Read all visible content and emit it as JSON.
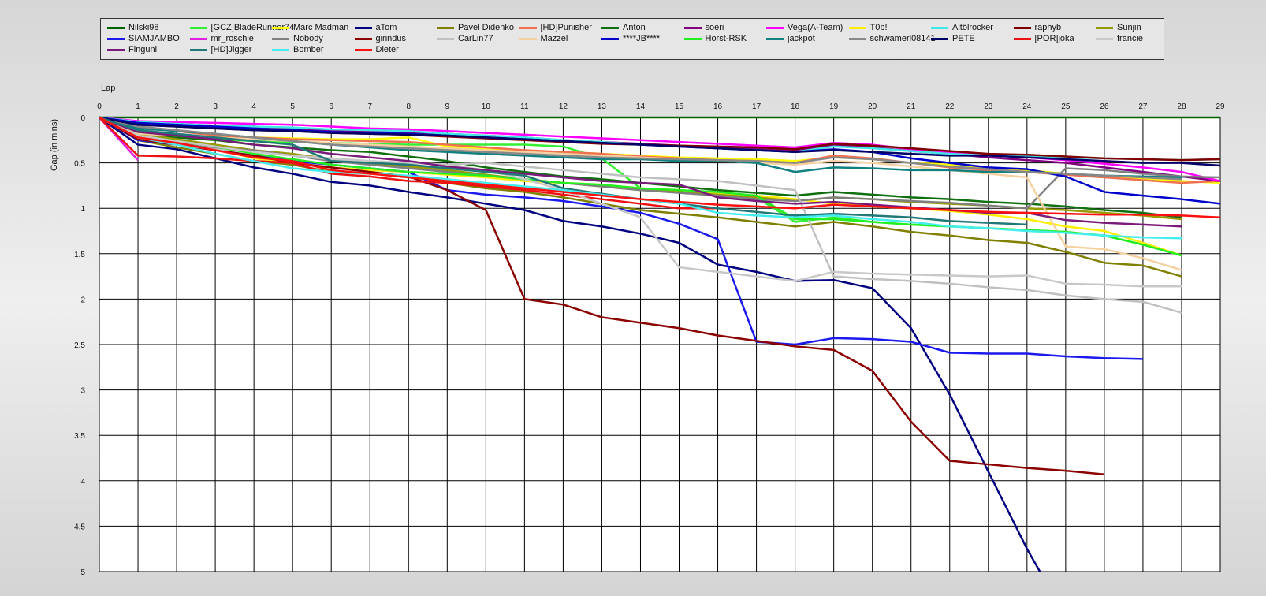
{
  "chart_data": {
    "type": "line",
    "xlabel": "Lap",
    "ylabel": "Gap (in mins)",
    "xlim": [
      0,
      29
    ],
    "ylim": [
      0,
      5
    ],
    "x_ticks": [
      "0",
      "1",
      "2",
      "3",
      "4",
      "5",
      "6",
      "7",
      "8",
      "9",
      "10",
      "11",
      "12",
      "13",
      "14",
      "15",
      "16",
      "17",
      "18",
      "19",
      "20",
      "21",
      "22",
      "23",
      "24",
      "25",
      "26",
      "27",
      "28",
      "29"
    ],
    "y_ticks": [
      "0",
      "0.5",
      "1",
      "1.5",
      "2",
      "2.5",
      "3",
      "3.5",
      "4",
      "4.5",
      "5"
    ],
    "y_tick_values": [
      0,
      0.5,
      1,
      1.5,
      2,
      2.5,
      3,
      3.5,
      4,
      4.5,
      5
    ],
    "grid": true,
    "legend_position": "top",
    "series": [
      {
        "name": "Nilski98",
        "color": "#006400",
        "values": [
          0,
          0,
          0,
          0,
          0,
          0,
          0,
          0,
          0,
          0,
          0,
          0,
          0,
          0,
          0,
          0,
          0,
          0,
          0,
          0,
          0,
          0,
          0,
          0,
          0,
          0,
          0,
          0,
          0,
          0
        ]
      },
      {
        "name": "[GCZ]BladeRunner74",
        "color": "#33ee33",
        "values": [
          0,
          0.2,
          0.22,
          0.24,
          0.26,
          0.27,
          0.28,
          0.29,
          0.3,
          0.3,
          0.3,
          0.3,
          0.32,
          0.45,
          0.78,
          0.82,
          0.84,
          0.88,
          1.15,
          1.1,
          1.15,
          1.18,
          1.2,
          1.22,
          1.24,
          1.26,
          1.3,
          1.4,
          1.52
        ]
      },
      {
        "name": "Marc Madman",
        "color": "#ffff00",
        "values": [
          0,
          0.15,
          0.2,
          0.22,
          0.22,
          0.23,
          0.24,
          0.24,
          0.22,
          0.32,
          0.35,
          0.37,
          0.38,
          0.4,
          0.42,
          0.44,
          0.45,
          0.46,
          0.48,
          0.44,
          0.46,
          0.5,
          0.52,
          0.55,
          0.58,
          0.62,
          0.65,
          0.68,
          0.7,
          0.72
        ]
      },
      {
        "name": "aTom",
        "color": "#000080",
        "values": [
          0,
          0.3,
          0.35,
          0.45,
          0.55,
          0.62,
          0.71,
          0.75,
          0.82,
          0.88,
          0.95,
          1.02,
          1.14,
          1.2,
          1.28,
          1.38,
          1.62,
          1.7,
          1.8,
          1.79,
          1.88,
          2.32,
          3.05,
          3.9,
          4.75,
          5.5
        ]
      },
      {
        "name": "Pavel Didenko",
        "color": "#808000",
        "values": [
          0,
          0.25,
          0.33,
          0.4,
          0.48,
          0.52,
          0.6,
          0.62,
          0.65,
          0.72,
          0.78,
          0.82,
          0.88,
          0.95,
          1.02,
          1.06,
          1.1,
          1.15,
          1.2,
          1.15,
          1.2,
          1.26,
          1.3,
          1.35,
          1.38,
          1.48,
          1.6,
          1.63,
          1.75
        ]
      },
      {
        "name": "[HD]Punisher",
        "color": "#f07050",
        "values": [
          0,
          0.1,
          0.15,
          0.2,
          0.22,
          0.24,
          0.25,
          0.26,
          0.27,
          0.3,
          0.33,
          0.36,
          0.38,
          0.4,
          0.43,
          0.45,
          0.47,
          0.48,
          0.5,
          0.42,
          0.45,
          0.5,
          0.55,
          0.58,
          0.6,
          0.63,
          0.66,
          0.69,
          0.72,
          0.7
        ]
      },
      {
        "name": "Anton",
        "color": "#107010",
        "values": [
          0,
          0.17,
          0.22,
          0.25,
          0.3,
          0.33,
          0.36,
          0.38,
          0.43,
          0.48,
          0.55,
          0.6,
          0.65,
          0.68,
          0.72,
          0.76,
          0.8,
          0.83,
          0.86,
          0.82,
          0.85,
          0.88,
          0.9,
          0.93,
          0.95,
          0.98,
          1.02,
          1.05,
          1.1
        ]
      },
      {
        "name": "soeri",
        "color": "#800080",
        "values": [
          0,
          0.05,
          0.07,
          0.09,
          0.1,
          0.12,
          0.14,
          0.15,
          0.16,
          0.18,
          0.2,
          0.22,
          0.25,
          0.27,
          0.29,
          0.31,
          0.33,
          0.35,
          0.37,
          0.3,
          0.33,
          0.37,
          0.4,
          0.44,
          0.47,
          0.5,
          0.55,
          0.6,
          0.65,
          0.7
        ]
      },
      {
        "name": "Vega(A-Team)",
        "color": "#ff00ff",
        "values": [
          0,
          0.04,
          0.05,
          0.06,
          0.07,
          0.08,
          0.1,
          0.12,
          0.13,
          0.15,
          0.17,
          0.19,
          0.21,
          0.23,
          0.25,
          0.27,
          0.29,
          0.31,
          0.33,
          0.28,
          0.3,
          0.35,
          0.38,
          0.42,
          0.44,
          0.47,
          0.51,
          0.55,
          0.6,
          0.7
        ]
      },
      {
        "name": "T0b!",
        "color": "#ffee00",
        "values": [
          0,
          0.22,
          0.28,
          0.35,
          0.45,
          0.5,
          0.55,
          0.58,
          0.6,
          0.63,
          0.66,
          0.7,
          0.72,
          0.74,
          0.78,
          0.8,
          0.83,
          0.86,
          0.9,
          0.95,
          0.98,
          1.0,
          1.03,
          1.07,
          1.12,
          1.2,
          1.25,
          1.38,
          1.52
        ]
      },
      {
        "name": "Altölrocker",
        "color": "#40e8e8",
        "values": [
          0,
          0.05,
          0.07,
          0.09,
          0.1,
          0.11,
          0.13,
          0.14,
          0.15,
          0.18,
          0.2,
          0.22,
          0.25,
          0.27,
          0.3,
          0.32,
          0.34,
          0.36,
          0.38,
          0.32,
          0.34,
          0.37,
          0.4,
          0.42,
          0.43,
          0.44,
          0.45,
          0.46,
          0.47,
          0.46
        ]
      },
      {
        "name": "raphyb",
        "color": "#800000",
        "values": [
          0,
          0.08,
          0.1,
          0.12,
          0.14,
          0.15,
          0.17,
          0.18,
          0.19,
          0.21,
          0.23,
          0.25,
          0.27,
          0.29,
          0.3,
          0.31,
          0.32,
          0.33,
          0.35,
          0.29,
          0.31,
          0.34,
          0.37,
          0.4,
          0.41,
          0.43,
          0.45,
          0.46,
          0.47,
          0.46
        ]
      },
      {
        "name": "Sunjin",
        "color": "#999900",
        "values": [
          0,
          0.18,
          0.24,
          0.3,
          0.36,
          0.4,
          0.46,
          0.5,
          0.54,
          0.58,
          0.63,
          0.68,
          0.72,
          0.76,
          0.8,
          0.82,
          0.85,
          0.88,
          0.92,
          0.88,
          0.9,
          0.93,
          0.95,
          0.97,
          1.0,
          1.02,
          1.05,
          1.08,
          1.12
        ]
      },
      {
        "name": "SIAMJAMBO",
        "color": "#1a1aee",
        "values": [
          0,
          0.25,
          0.3,
          0.36,
          0.42,
          0.48,
          0.52,
          0.56,
          0.6,
          0.8,
          0.85,
          0.88,
          0.92,
          0.98,
          1.05,
          1.17,
          1.34,
          2.47,
          2.5,
          2.43,
          2.44,
          2.47,
          2.59,
          2.6,
          2.6,
          2.63,
          2.65,
          2.66
        ]
      },
      {
        "name": "mr_roschie",
        "color": "#e020e0",
        "values": [
          0,
          0.47
        ]
      },
      {
        "name": "Nobody",
        "color": "#808080",
        "values": [
          0,
          0.2,
          0.28,
          0.34,
          0.36,
          0.42,
          0.48,
          0.52,
          0.56,
          0.6,
          0.64,
          0.68,
          0.72,
          0.76,
          0.8,
          0.83,
          0.86,
          0.9,
          0.92,
          0.88,
          0.9,
          0.92,
          0.94,
          0.97,
          1.0,
          0.56,
          0.58,
          0.62,
          0.65,
          0.66
        ]
      },
      {
        "name": "girindus",
        "color": "#8b0000",
        "values": [
          0,
          0.24,
          0.3,
          0.36,
          0.42,
          0.5,
          0.55,
          0.6,
          0.65,
          0.8,
          1.02,
          2.0,
          2.06,
          2.2,
          2.26,
          2.32,
          2.4,
          2.46,
          2.52,
          2.56,
          2.79,
          3.35,
          3.78,
          3.82,
          3.86,
          3.89,
          3.93
        ]
      },
      {
        "name": "CarLin77",
        "color": "#c0c0c0",
        "values": [
          0,
          0.22,
          0.3,
          0.35,
          0.38,
          0.42,
          0.45,
          0.48,
          0.5,
          0.52,
          0.5,
          0.54,
          0.58,
          0.62,
          0.66,
          0.68,
          0.7,
          0.75,
          0.8,
          1.75,
          1.78,
          1.8,
          1.83,
          1.87,
          1.9,
          1.96,
          2.0,
          2.03,
          2.15
        ]
      },
      {
        "name": "Mazzel",
        "color": "#f5d0a0",
        "values": [
          0,
          0.18,
          0.2,
          0.22,
          0.24,
          0.26,
          0.28,
          0.3,
          0.32,
          0.34,
          0.36,
          0.38,
          0.4,
          0.42,
          0.44,
          0.46,
          0.48,
          0.5,
          0.52,
          0.48,
          0.5,
          0.54,
          0.58,
          0.62,
          0.66,
          1.42,
          1.45,
          1.55,
          1.68
        ]
      },
      {
        "name": "****JB****",
        "color": "#0000cc",
        "values": [
          0,
          0.06,
          0.08,
          0.1,
          0.12,
          0.14,
          0.16,
          0.17,
          0.18,
          0.2,
          0.22,
          0.24,
          0.26,
          0.28,
          0.3,
          0.32,
          0.34,
          0.36,
          0.38,
          0.35,
          0.38,
          0.45,
          0.5,
          0.55,
          0.57,
          0.65,
          0.82,
          0.86,
          0.9,
          0.95
        ]
      },
      {
        "name": "Horst-RSK",
        "color": "#22ee22",
        "values": [
          0,
          0.2,
          0.26,
          0.32,
          0.4,
          0.46,
          0.52,
          0.56,
          0.6,
          0.62,
          0.64,
          0.68,
          0.72,
          0.74,
          0.78,
          0.8,
          0.82,
          0.86,
          1.12,
          1.12,
          1.15,
          1.18,
          1.2,
          1.22,
          1.24,
          1.26,
          1.3,
          1.4,
          1.52
        ]
      },
      {
        "name": "jackpot",
        "color": "#108080",
        "values": [
          0,
          0.12,
          0.15,
          0.18,
          0.22,
          0.26,
          0.3,
          0.33,
          0.36,
          0.38,
          0.4,
          0.42,
          0.44,
          0.46,
          0.46,
          0.48,
          0.48,
          0.5,
          0.6,
          0.55,
          0.56,
          0.58,
          0.58,
          0.6,
          0.6,
          0.62,
          0.64,
          0.65,
          0.66
        ]
      },
      {
        "name": "schwamerl08141",
        "color": "#888888",
        "values": [
          0,
          0.1,
          0.14,
          0.18,
          0.22,
          0.26,
          0.3,
          0.32,
          0.34,
          0.36,
          0.38,
          0.4,
          0.42,
          0.44,
          0.45,
          0.46,
          0.47,
          0.48,
          0.5,
          0.44,
          0.46,
          0.5,
          0.54,
          0.57,
          0.6,
          0.62,
          0.64,
          0.66,
          0.68
        ]
      },
      {
        "name": "PETE",
        "color": "#000066",
        "values": [
          0,
          0.08,
          0.1,
          0.12,
          0.14,
          0.15,
          0.17,
          0.18,
          0.19,
          0.2,
          0.22,
          0.24,
          0.26,
          0.28,
          0.3,
          0.32,
          0.34,
          0.36,
          0.38,
          0.36,
          0.38,
          0.4,
          0.42,
          0.42,
          0.44,
          0.46,
          0.48,
          0.5,
          0.5,
          0.53
        ]
      },
      {
        "name": "[POR]joka",
        "color": "#ee1111",
        "values": [
          0,
          0.42,
          0.43,
          0.45,
          0.48,
          0.5,
          0.62,
          0.65,
          0.7,
          0.72,
          0.76,
          0.8,
          0.85,
          0.9,
          0.95,
          1.0,
          1.0
        ]
      },
      {
        "name": "francie",
        "color": "#c8c8c8",
        "values": [
          0,
          0.2,
          0.26,
          0.32,
          0.38,
          0.42,
          0.46,
          0.48,
          0.5,
          0.52,
          0.58,
          0.68,
          0.8,
          0.95,
          1.1,
          1.65,
          1.7,
          1.75,
          1.8,
          1.7,
          1.72,
          1.73,
          1.74,
          1.75,
          1.74,
          1.83,
          1.84,
          1.86,
          1.86
        ]
      },
      {
        "name": "Finguni",
        "color": "#7a1a7a",
        "values": [
          0,
          0.16,
          0.2,
          0.24,
          0.3,
          0.34,
          0.4,
          0.44,
          0.48,
          0.54,
          0.58,
          0.62,
          0.66,
          0.7,
          0.72,
          0.74,
          0.88,
          0.92,
          0.95,
          0.93,
          0.96,
          0.99,
          1.02,
          1.05,
          1.05,
          1.13,
          1.16,
          1.18,
          1.2
        ]
      },
      {
        "name": "[HD]Jigger",
        "color": "#207878",
        "values": [
          0,
          0.14,
          0.18,
          0.22,
          0.26,
          0.3,
          0.48,
          0.5,
          0.52,
          0.56,
          0.6,
          0.64,
          0.78,
          0.84,
          0.9,
          0.95,
          1.0,
          1.04,
          1.08,
          1.06,
          1.08,
          1.1,
          1.14,
          1.16,
          1.18
        ]
      },
      {
        "name": "Bomber",
        "color": "#44eeee",
        "values": [
          0,
          0.22,
          0.3,
          0.4,
          0.48,
          0.56,
          0.6,
          0.62,
          0.64,
          0.68,
          0.72,
          0.76,
          0.8,
          0.85,
          0.9,
          0.95,
          1.05,
          1.08,
          1.1,
          1.08,
          1.12,
          1.15,
          1.2,
          1.22,
          1.25,
          1.27,
          1.3,
          1.32,
          1.33
        ]
      },
      {
        "name": "Dieter",
        "color": "#ff1010",
        "values": [
          0,
          0.22,
          0.28,
          0.36,
          0.44,
          0.48,
          0.58,
          0.62,
          0.66,
          0.7,
          0.74,
          0.78,
          0.82,
          0.86,
          0.9,
          0.93,
          0.96,
          0.98,
          1.0,
          0.96,
          0.98,
          1.0,
          1.02,
          1.04,
          1.05,
          1.06,
          1.07,
          1.07,
          1.08,
          1.1
        ]
      }
    ]
  }
}
